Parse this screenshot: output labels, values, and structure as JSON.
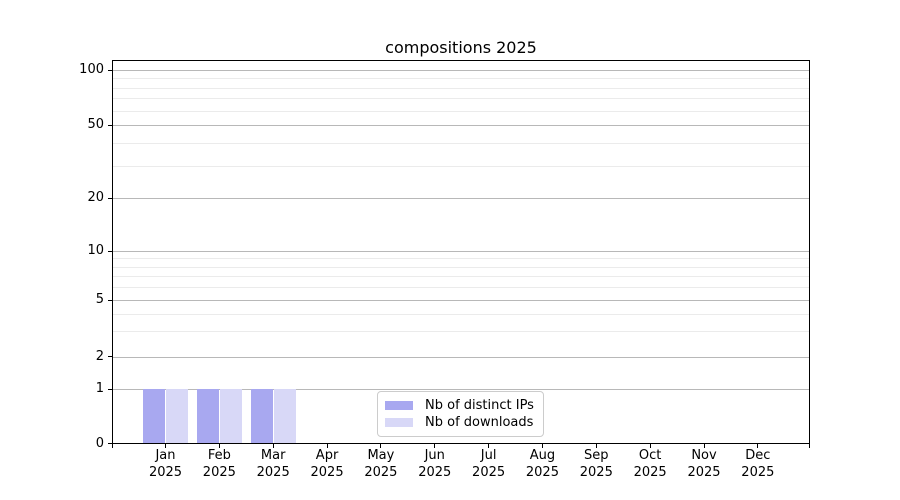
{
  "chart_data": {
    "type": "bar",
    "title": "compositions 2025",
    "categories": [
      "Jan",
      "Feb",
      "Mar",
      "Apr",
      "May",
      "Jun",
      "Jul",
      "Aug",
      "Sep",
      "Oct",
      "Nov",
      "Dec"
    ],
    "category_year": "2025",
    "series": [
      {
        "name": "Nb of distinct IPs",
        "color": "#a8a8f0",
        "values": [
          1,
          1,
          1,
          0,
          0,
          0,
          0,
          0,
          0,
          0,
          0,
          0
        ]
      },
      {
        "name": "Nb of downloads",
        "color": "#d8d8f7",
        "values": [
          1,
          1,
          1,
          0,
          0,
          0,
          0,
          0,
          0,
          0,
          0,
          0
        ]
      }
    ],
    "xlabel": "",
    "ylabel": "",
    "y_axis": {
      "scale": "symlog",
      "ticks": [
        0,
        1,
        2,
        5,
        10,
        20,
        50,
        100
      ],
      "minor_gridlines": [
        3,
        4,
        6,
        7,
        8,
        9,
        30,
        40,
        60,
        70,
        80,
        90
      ],
      "range": [
        0,
        100
      ]
    },
    "grid": {
      "horizontal": true,
      "major_color": "#b8b8b8",
      "minor_color": "#ebebeb"
    },
    "legend": {
      "position": "inside-bottom-center"
    },
    "colors": {
      "axis": "#000000",
      "text": "#000000",
      "background": "#ffffff"
    }
  }
}
